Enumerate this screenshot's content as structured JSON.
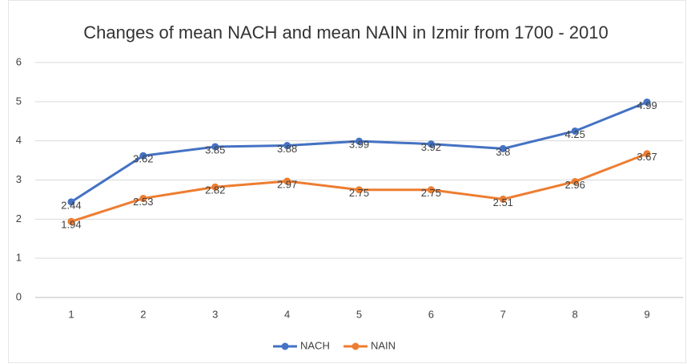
{
  "chart_data": {
    "type": "line",
    "title": "Changes of mean NACH and mean NAIN in Izmir from 1700 - 2010",
    "categories": [
      "1",
      "2",
      "3",
      "4",
      "5",
      "6",
      "7",
      "8",
      "9"
    ],
    "series": [
      {
        "name": "NACH",
        "color": "#4472c4",
        "values": [
          2.44,
          3.62,
          3.85,
          3.88,
          3.99,
          3.92,
          3.8,
          4.25,
          4.99
        ]
      },
      {
        "name": "NAIN",
        "color": "#ed7d31",
        "values": [
          1.94,
          2.53,
          2.82,
          2.97,
          2.75,
          2.75,
          2.51,
          2.96,
          3.67
        ]
      }
    ],
    "ylim": [
      0,
      6
    ],
    "yticks": [
      0,
      1,
      2,
      3,
      4,
      5,
      6
    ],
    "grid": true,
    "legend": "bottom"
  }
}
